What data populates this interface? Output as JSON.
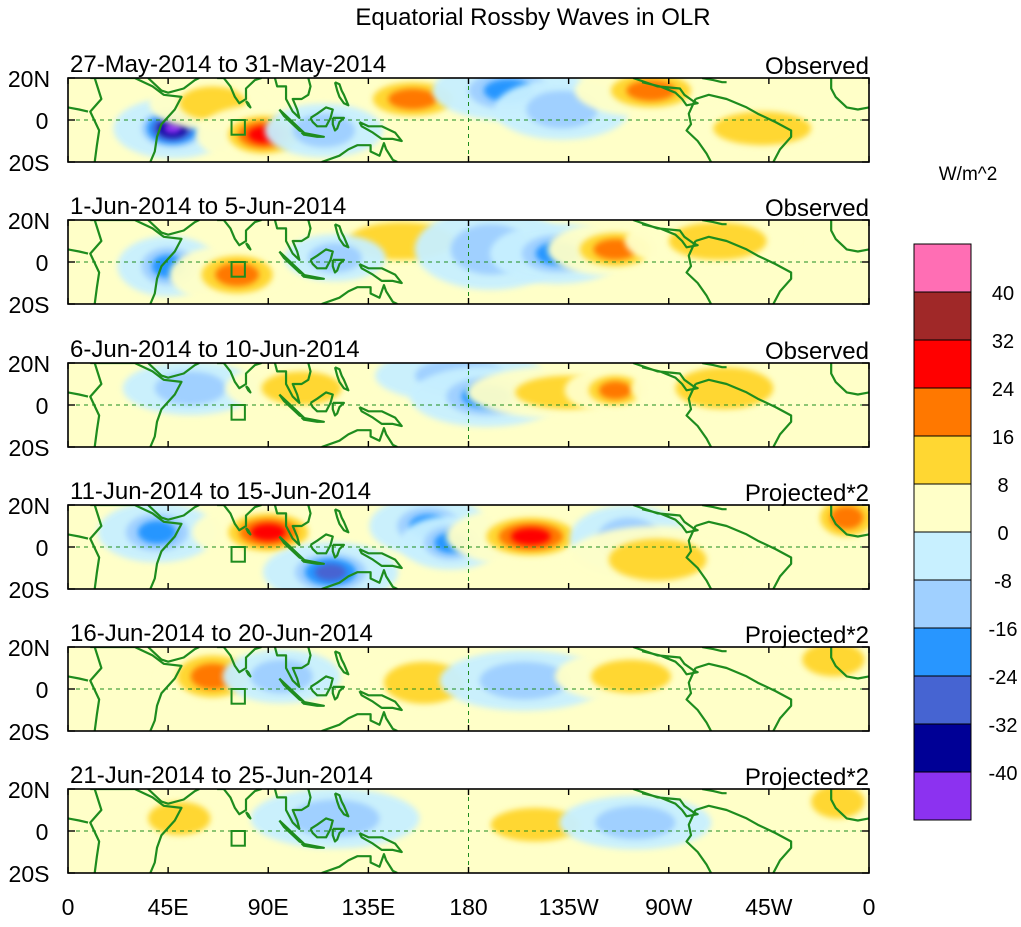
{
  "chart_data": {
    "type": "heatmap",
    "title": "Equatorial Rossby Waves in OLR",
    "units_label": "W/m^2",
    "y_ticks": [
      "20N",
      "0",
      "20S"
    ],
    "x_ticks": [
      "0",
      "45E",
      "90E",
      "135E",
      "180",
      "135W",
      "90W",
      "45W",
      "0"
    ],
    "lon_range": [
      0,
      360
    ],
    "lat_range": [
      -20,
      20
    ],
    "colorbar": {
      "levels": [
        "40",
        "32",
        "24",
        "16",
        "8",
        "0",
        "-8",
        "-16",
        "-24",
        "-32",
        "-40"
      ],
      "colors": [
        "#ff6eb4",
        "#a02828",
        "#ff0000",
        "#ff7800",
        "#ffd732",
        "#ffffc8",
        "#c8f0ff",
        "#a0d0ff",
        "#2896ff",
        "#4664d2",
        "#000096",
        "#8c32f0"
      ]
    },
    "panels": [
      {
        "date": "27-May-2014 to 31-May-2014",
        "label": "Observed",
        "anomalies": [
          {
            "lon": 47,
            "lat": -4,
            "w": 14,
            "h": 9,
            "val": -40
          },
          {
            "lon": 65,
            "lat": 8,
            "w": 15,
            "h": 8,
            "val": 12
          },
          {
            "lon": 88,
            "lat": -7,
            "w": 16,
            "h": 9,
            "val": 30
          },
          {
            "lon": 155,
            "lat": 10,
            "w": 18,
            "h": 8,
            "val": 20
          },
          {
            "lon": 198,
            "lat": 14,
            "w": 18,
            "h": 9,
            "val": -18
          },
          {
            "lon": 222,
            "lat": 5,
            "w": 16,
            "h": 9,
            "val": -10
          },
          {
            "lon": 262,
            "lat": 14,
            "w": 18,
            "h": 8,
            "val": 22
          },
          {
            "lon": 312,
            "lat": -4,
            "w": 22,
            "h": 8,
            "val": 8
          },
          {
            "lon": 115,
            "lat": -5,
            "w": 14,
            "h": 8,
            "val": -10
          }
        ]
      },
      {
        "date": "1-Jun-2014 to 5-Jun-2014",
        "label": "Observed",
        "anomalies": [
          {
            "lon": 45,
            "lat": -2,
            "w": 12,
            "h": 9,
            "val": -20
          },
          {
            "lon": 76,
            "lat": -6,
            "w": 16,
            "h": 9,
            "val": 18
          },
          {
            "lon": 150,
            "lat": 10,
            "w": 24,
            "h": 9,
            "val": 12
          },
          {
            "lon": 190,
            "lat": 6,
            "w": 18,
            "h": 12,
            "val": -14
          },
          {
            "lon": 220,
            "lat": 4,
            "w": 16,
            "h": 9,
            "val": -18
          },
          {
            "lon": 246,
            "lat": 6,
            "w": 16,
            "h": 8,
            "val": 16
          },
          {
            "lon": 292,
            "lat": 10,
            "w": 22,
            "h": 9,
            "val": 10
          },
          {
            "lon": 120,
            "lat": 2,
            "w": 12,
            "h": 7,
            "val": -12
          }
        ]
      },
      {
        "date": "6-Jun-2014 to 10-Jun-2014",
        "label": "Observed",
        "anomalies": [
          {
            "lon": 55,
            "lat": 8,
            "w": 16,
            "h": 8,
            "val": -10
          },
          {
            "lon": 105,
            "lat": 8,
            "w": 18,
            "h": 8,
            "val": 10
          },
          {
            "lon": 176,
            "lat": 14,
            "w": 20,
            "h": 8,
            "val": -10
          },
          {
            "lon": 188,
            "lat": 4,
            "w": 18,
            "h": 9,
            "val": -22
          },
          {
            "lon": 225,
            "lat": 6,
            "w": 24,
            "h": 8,
            "val": 12
          },
          {
            "lon": 246,
            "lat": 7,
            "w": 12,
            "h": 7,
            "val": 18
          },
          {
            "lon": 295,
            "lat": 8,
            "w": 22,
            "h": 10,
            "val": 8
          }
        ]
      },
      {
        "date": "11-Jun-2014 to 15-Jun-2014",
        "label": "Projected*2",
        "anomalies": [
          {
            "lon": 40,
            "lat": 7,
            "w": 14,
            "h": 9,
            "val": -18
          },
          {
            "lon": 90,
            "lat": 7,
            "w": 18,
            "h": 9,
            "val": 24
          },
          {
            "lon": 118,
            "lat": -12,
            "w": 16,
            "h": 9,
            "val": -24
          },
          {
            "lon": 162,
            "lat": 10,
            "w": 14,
            "h": 9,
            "val": -18
          },
          {
            "lon": 172,
            "lat": 2,
            "w": 12,
            "h": 8,
            "val": -20
          },
          {
            "lon": 208,
            "lat": 5,
            "w": 20,
            "h": 9,
            "val": 30
          },
          {
            "lon": 252,
            "lat": 4,
            "w": 14,
            "h": 10,
            "val": -12
          },
          {
            "lon": 265,
            "lat": -6,
            "w": 22,
            "h": 10,
            "val": 12
          },
          {
            "lon": 350,
            "lat": 14,
            "w": 12,
            "h": 9,
            "val": 16
          }
        ]
      },
      {
        "date": "16-Jun-2014 to 20-Jun-2014",
        "label": "Projected*2",
        "anomalies": [
          {
            "lon": 65,
            "lat": 6,
            "w": 16,
            "h": 10,
            "val": 18
          },
          {
            "lon": 96,
            "lat": 6,
            "w": 14,
            "h": 8,
            "val": -10
          },
          {
            "lon": 160,
            "lat": 3,
            "w": 18,
            "h": 10,
            "val": 8
          },
          {
            "lon": 205,
            "lat": 4,
            "w": 20,
            "h": 9,
            "val": -10
          },
          {
            "lon": 253,
            "lat": 6,
            "w": 18,
            "h": 8,
            "val": 10
          },
          {
            "lon": 344,
            "lat": 14,
            "w": 14,
            "h": 8,
            "val": 12
          }
        ]
      },
      {
        "date": "21-Jun-2014 to 25-Jun-2014",
        "label": "Projected*2",
        "anomalies": [
          {
            "lon": 50,
            "lat": 6,
            "w": 14,
            "h": 8,
            "val": 8
          },
          {
            "lon": 120,
            "lat": 6,
            "w": 20,
            "h": 9,
            "val": -10
          },
          {
            "lon": 210,
            "lat": 3,
            "w": 20,
            "h": 8,
            "val": 8
          },
          {
            "lon": 255,
            "lat": 4,
            "w": 18,
            "h": 8,
            "val": -8
          },
          {
            "lon": 346,
            "lat": 14,
            "w": 12,
            "h": 8,
            "val": 10
          }
        ]
      }
    ]
  }
}
